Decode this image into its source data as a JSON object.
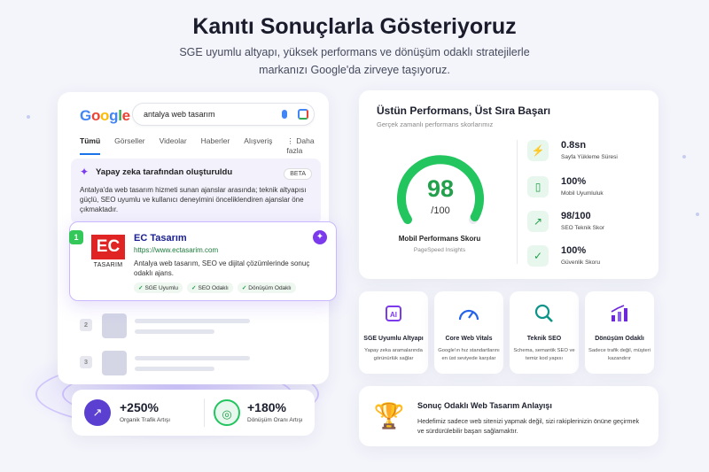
{
  "header": {
    "title": "Kanıtı Sonuçlarla Gösteriyoruz",
    "subtitle_line1": "SGE uyumlu altyapı, yüksek performans ve dönüşüm odaklı stratejilerle",
    "subtitle_line2": "markanızı Google'da zirveye taşıyoruz."
  },
  "search": {
    "logo": "Google",
    "query": "antalya web tasarım",
    "tabs": [
      "Tümü",
      "Görseller",
      "Videolar",
      "Haberler",
      "Alışveriş",
      "⋮ Daha fazla"
    ],
    "ai_overview": {
      "title": "Yapay zeka tarafından oluşturuldu",
      "badge": "BETA",
      "text": "Antalya'da web tasarım hizmeti sunan ajanslar arasında; teknik altyapısı güçlü, SEO uyumlu ve kullanıcı deneyimini önceliklendiren ajanslar öne çıkmaktadır."
    },
    "top_result": {
      "rank": "1",
      "logo_text": "EC",
      "logo_sub": "TASARIM",
      "name": "EC Tasarım",
      "url": "https://www.ectasarim.com",
      "desc": "Antalya web tasarım, SEO ve dijital çözümlerinde sonuç odaklı ajans.",
      "chips": [
        "SGE Uyumlu",
        "SEO Odaklı",
        "Dönüşüm Odaklı"
      ]
    },
    "placeholders": [
      "2",
      "3"
    ]
  },
  "stats": [
    {
      "value": "+250%",
      "label": "Organik Trafik Artışı",
      "icon": "trend-up-icon"
    },
    {
      "value": "+180%",
      "label": "Dönüşüm Oranı Artışı",
      "icon": "target-icon"
    }
  ],
  "performance": {
    "title": "Üstün Performans, Üst Sıra Başarı",
    "subtitle": "Gerçek zamanlı performans skorlarımız",
    "score": 98,
    "score_display": "98",
    "score_max": "/100",
    "gauge_label": "Mobil Performans Skoru",
    "gauge_sub": "PageSpeed Insights",
    "metrics": [
      {
        "value": "0.8sn",
        "label": "Sayfa Yükleme Süresi",
        "icon": "lightning-icon"
      },
      {
        "value": "100%",
        "label": "Mobil Uyumluluk",
        "icon": "phone-icon"
      },
      {
        "value": "98/100",
        "label": "SEO Teknik Skor",
        "icon": "chart-icon"
      },
      {
        "value": "100%",
        "label": "Güvenlik Skoru",
        "icon": "shield-icon"
      }
    ]
  },
  "features": [
    {
      "title": "SGE Uyumlu Altyapı",
      "desc": "Yapay zeka aramalarında görünürlük sağlar",
      "icon": "ai-chip-icon",
      "color": "#7c3aed"
    },
    {
      "title": "Core Web Vitals",
      "desc": "Google'ın hız standartlarını en üst seviyede karşılar",
      "icon": "speedometer-icon",
      "color": "#2563eb"
    },
    {
      "title": "Teknik SEO",
      "desc": "Schema, semantik SEO ve temiz kod yapısı",
      "icon": "magnifier-icon",
      "color": "#0d9488"
    },
    {
      "title": "Dönüşüm Odaklı",
      "desc": "Sadece trafik değil, müşteri kazandırır",
      "icon": "bar-chart-icon",
      "color": "#6d28d9"
    }
  ],
  "result_card": {
    "title": "Sonuç Odaklı Web Tasarım Anlayışı",
    "text": "Hedefimiz sadece web sitenizi yapmak değil, sizi rakiplerinizin önüne geçirmek ve sürdürülebilir başarı sağlamaktır.",
    "icon": "trophy-icon"
  }
}
